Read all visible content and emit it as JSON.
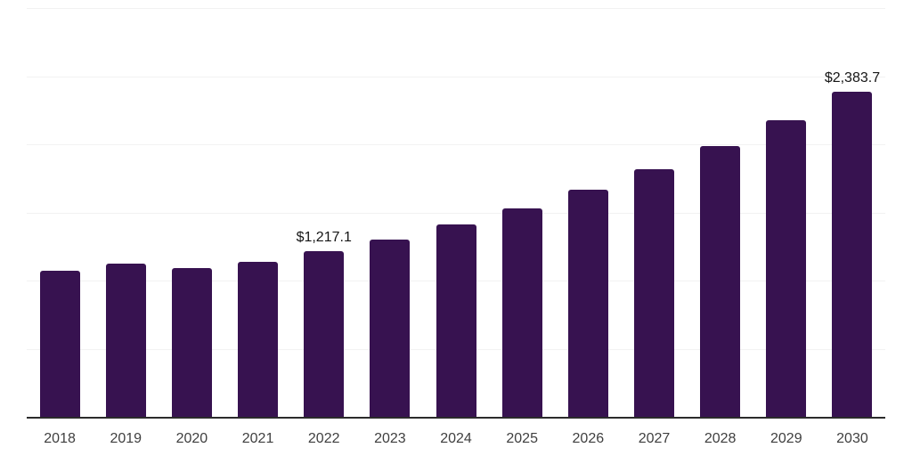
{
  "chart_data": {
    "type": "bar",
    "title": "",
    "xlabel": "",
    "ylabel": "",
    "categories": [
      "2018",
      "2019",
      "2020",
      "2021",
      "2022",
      "2023",
      "2024",
      "2025",
      "2026",
      "2027",
      "2028",
      "2029",
      "2030"
    ],
    "values": [
      1070,
      1125,
      1090,
      1140,
      1217.1,
      1300,
      1410,
      1530,
      1670,
      1820,
      1990,
      2175,
      2383.7
    ],
    "value_labels": {
      "2022": "$1,217.1",
      "2030": "$2,383.7"
    },
    "ylim": [
      0,
      3000
    ],
    "gridline_values": [
      500,
      1000,
      1500,
      2000,
      2500,
      3000
    ],
    "grid": true,
    "legend": "none",
    "colors": {
      "bar": "#371250",
      "gridline": "#f2f2f2",
      "axis_line": "#2b2b2b",
      "tick_label": "#3f3f3f",
      "data_label": "#151515"
    }
  }
}
